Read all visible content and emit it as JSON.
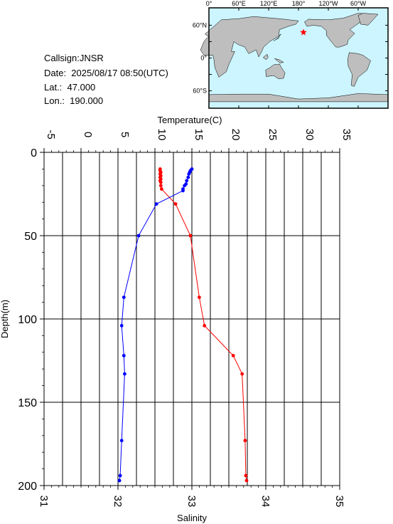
{
  "station": {
    "callsign": "Callsign:JNSR",
    "date": "Date:  2025/08/17 08:50(UTC)",
    "lat": "Lat.:  47.000",
    "lon": "Lon.:  190.000"
  },
  "map": {
    "top_labels": [
      "0°",
      "60°E",
      "120°E",
      "180°",
      "120°W",
      "60°W"
    ],
    "left_labels": [
      "60°N",
      "0°",
      "60°S"
    ],
    "ocean_color": "#ccf5ff",
    "land_color": "#bebebe",
    "marker_color": "#ff0000",
    "marker_lonlat": [
      190,
      47
    ]
  },
  "chart_data": {
    "type": "line",
    "ylabel": "Depth(m)",
    "x_top_label": "Temperature(C)",
    "x_bottom_label": "Salinity",
    "depth_lim": [
      0,
      200
    ],
    "temperature_lim": [
      -5,
      35
    ],
    "salinity_lim": [
      31,
      35
    ],
    "depth_ticks": [
      "0",
      "50",
      "100",
      "150",
      "200"
    ],
    "temperature_ticks": [
      "-5",
      "0",
      "5",
      "10",
      "15",
      "20",
      "25",
      "30",
      "35"
    ],
    "salinity_ticks": [
      "31",
      "32",
      "33",
      "34",
      "35"
    ],
    "grid": true,
    "series": [
      {
        "color": "#ff0000",
        "axis": "temperature",
        "points": [
          [
            10.7,
            10
          ],
          [
            10.7,
            11
          ],
          [
            10.8,
            12
          ],
          [
            10.7,
            13
          ],
          [
            10.8,
            14
          ],
          [
            10.7,
            15
          ],
          [
            10.8,
            16
          ],
          [
            10.7,
            17
          ],
          [
            10.8,
            18
          ],
          [
            10.8,
            20
          ],
          [
            10.9,
            22
          ],
          [
            12.8,
            31
          ],
          [
            14.8,
            50
          ],
          [
            16.0,
            87
          ],
          [
            16.7,
            104
          ],
          [
            20.6,
            122
          ],
          [
            21.8,
            133
          ],
          [
            22.2,
            173
          ],
          [
            22.3,
            194
          ],
          [
            22.4,
            197
          ]
        ]
      },
      {
        "color": "#0000ff",
        "axis": "salinity",
        "points": [
          [
            33.0,
            10
          ],
          [
            32.98,
            11
          ],
          [
            32.97,
            12
          ],
          [
            32.96,
            13
          ],
          [
            32.95,
            15
          ],
          [
            32.93,
            17
          ],
          [
            32.92,
            19
          ],
          [
            32.9,
            20
          ],
          [
            32.88,
            22
          ],
          [
            32.88,
            23
          ],
          [
            32.52,
            31
          ],
          [
            32.28,
            50
          ],
          [
            32.08,
            87
          ],
          [
            32.05,
            104
          ],
          [
            32.08,
            122
          ],
          [
            32.09,
            133
          ],
          [
            32.05,
            173
          ],
          [
            32.03,
            194
          ],
          [
            32.02,
            197
          ]
        ]
      }
    ]
  }
}
